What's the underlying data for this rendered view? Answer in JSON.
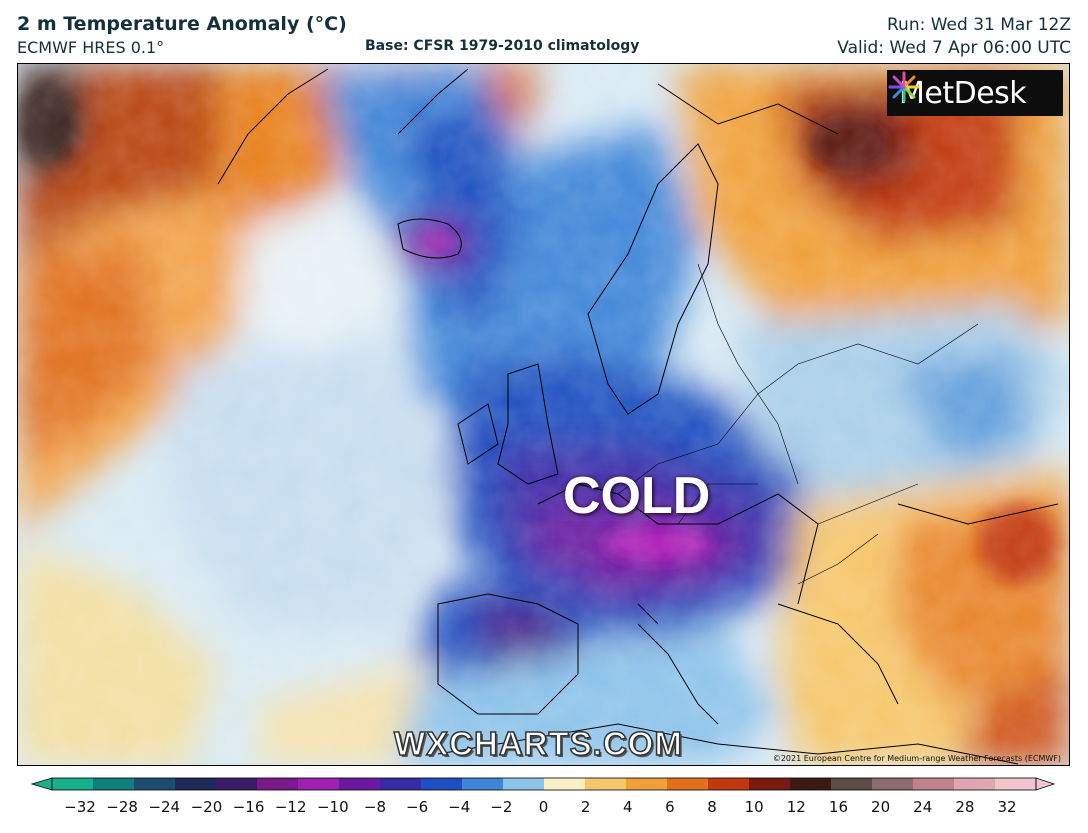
{
  "header": {
    "title": "2 m Temperature Anomaly (°C)",
    "model": "ECMWF HRES 0.1°",
    "base": "Base: CFSR 1979-2010 climatology",
    "run": "Run: Wed 31 Mar 12Z",
    "valid": "Valid: Wed 7 Apr 06:00 UTC"
  },
  "map": {
    "annotation": "COLD",
    "watermark": "WXCHARTS.COM",
    "copyright": "©2021 European Centre for Medium-range Weather Forecasts (ECMWF)",
    "logo_text": "MetDesk",
    "logo_icon": "flower-burst-icon"
  },
  "colorbar": {
    "ticks": [
      "−32",
      "−28",
      "−24",
      "−20",
      "−16",
      "−12",
      "−10",
      "−8",
      "−6",
      "−4",
      "−2",
      "0",
      "2",
      "4",
      "6",
      "8",
      "10",
      "12",
      "16",
      "20",
      "24",
      "28",
      "32"
    ],
    "colors": [
      "#17b08a",
      "#0f7f78",
      "#1a4d6e",
      "#1d2a5a",
      "#3a1b6a",
      "#7a1a8a",
      "#a020b0",
      "#6a1aa0",
      "#3a2aa8",
      "#1f4fc0",
      "#3f86d8",
      "#8cc3ea",
      "#fbf0c6",
      "#f6c66a",
      "#f0a03a",
      "#e2701c",
      "#c2390f",
      "#7a1a10",
      "#3c1a16",
      "#5e4a48",
      "#8a6c70",
      "#c0808f",
      "#e0a6b6",
      "#f2c4d0"
    ]
  }
}
